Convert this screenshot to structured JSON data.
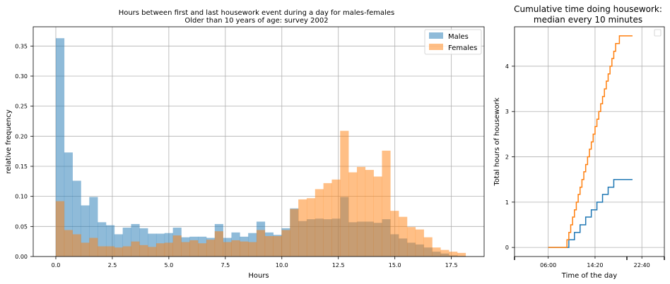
{
  "chart_data": [
    {
      "type": "bar",
      "subtype": "overlapping-histogram",
      "title": "Hours between first and last housework event during a day for males-females",
      "subtitle": "Older than 10 years of age: survey 2002",
      "xlabel": "Hours",
      "ylabel": "relative frequency",
      "xlim": [
        -1.0,
        18.95
      ],
      "ylim": [
        0,
        0.382
      ],
      "xticks": [
        0.0,
        2.5,
        5.0,
        7.5,
        10.0,
        12.5,
        15.0,
        17.5
      ],
      "xtick_labels": [
        "0.0",
        "2.5",
        "5.0",
        "7.5",
        "10.0",
        "12.5",
        "15.0",
        "17.5"
      ],
      "yticks": [
        0,
        0.05,
        0.1,
        0.15,
        0.2,
        0.25,
        0.3,
        0.35
      ],
      "ytick_labels": [
        "0.00",
        "0.05",
        "0.10",
        "0.15",
        "0.20",
        "0.25",
        "0.30",
        "0.35"
      ],
      "grid": true,
      "legend_position": "top-right",
      "bin_start": 0.0,
      "bin_width": 0.37,
      "series": [
        {
          "name": "Males",
          "color": "#1f77b4",
          "values": [
            0.363,
            0.173,
            0.126,
            0.085,
            0.099,
            0.057,
            0.052,
            0.037,
            0.048,
            0.054,
            0.047,
            0.038,
            0.038,
            0.039,
            0.048,
            0.032,
            0.033,
            0.033,
            0.031,
            0.054,
            0.031,
            0.04,
            0.033,
            0.039,
            0.058,
            0.04,
            0.036,
            0.047,
            0.08,
            0.059,
            0.062,
            0.063,
            0.062,
            0.063,
            0.099,
            0.057,
            0.058,
            0.058,
            0.056,
            0.062,
            0.037,
            0.03,
            0.023,
            0.02,
            0.015,
            0.008,
            0.005,
            0.002,
            0.001
          ]
        },
        {
          "name": "Females",
          "color": "#ff7f0e",
          "values": [
            0.092,
            0.044,
            0.037,
            0.023,
            0.031,
            0.017,
            0.017,
            0.015,
            0.017,
            0.025,
            0.019,
            0.016,
            0.022,
            0.023,
            0.035,
            0.024,
            0.027,
            0.022,
            0.028,
            0.042,
            0.024,
            0.027,
            0.025,
            0.024,
            0.044,
            0.034,
            0.034,
            0.044,
            0.079,
            0.095,
            0.097,
            0.112,
            0.122,
            0.128,
            0.209,
            0.14,
            0.149,
            0.144,
            0.133,
            0.176,
            0.076,
            0.066,
            0.049,
            0.045,
            0.032,
            0.015,
            0.011,
            0.008,
            0.006
          ]
        }
      ]
    },
    {
      "type": "line",
      "subtype": "step",
      "title": "Cumulative time doing housework:",
      "subtitle": "median every 10 minutes",
      "xlabel": "Time of the day",
      "ylabel": "Total hours of housework",
      "x_unit": "minutes after midnight",
      "xlim": [
        0,
        1600
      ],
      "ylim": [
        -0.2,
        4.87
      ],
      "xticks": [
        360,
        860,
        1360
      ],
      "xtick_labels": [
        "06:00",
        "14:20",
        "22:40"
      ],
      "yticks": [
        0,
        1,
        2,
        3,
        4
      ],
      "ytick_labels": [
        "0",
        "1",
        "2",
        "3",
        "4"
      ],
      "grid": true,
      "legend_position": "top-right",
      "legend_entries": [],
      "series": [
        {
          "color": "#1f77b4",
          "x": [
            360,
            580,
            640,
            700,
            760,
            820,
            880,
            940,
            1000,
            1060,
            1120,
            1260
          ],
          "y": [
            0,
            0.17,
            0.33,
            0.5,
            0.67,
            0.83,
            1.0,
            1.17,
            1.33,
            1.5,
            1.5,
            1.5
          ]
        },
        {
          "color": "#ff7f0e",
          "x": [
            360,
            540,
            560,
            580,
            600,
            620,
            640,
            660,
            680,
            700,
            720,
            740,
            760,
            780,
            800,
            820,
            840,
            860,
            880,
            900,
            920,
            940,
            960,
            980,
            1000,
            1020,
            1040,
            1060,
            1080,
            1100,
            1120,
            1260
          ],
          "y": [
            0,
            0,
            0.17,
            0.33,
            0.5,
            0.67,
            0.83,
            1.0,
            1.17,
            1.33,
            1.5,
            1.67,
            1.83,
            2.0,
            2.17,
            2.33,
            2.5,
            2.67,
            2.83,
            3.0,
            3.17,
            3.33,
            3.5,
            3.67,
            3.83,
            4.0,
            4.17,
            4.33,
            4.5,
            4.5,
            4.67,
            4.67
          ]
        }
      ]
    }
  ]
}
